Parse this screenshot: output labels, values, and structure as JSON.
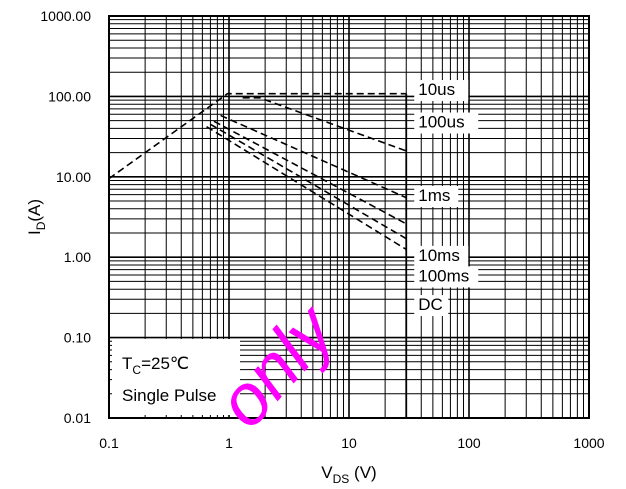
{
  "chart_data": {
    "type": "line",
    "title": "",
    "xlabel": {
      "main": "V",
      "sub": "DS",
      "unit": " (V)"
    },
    "ylabel": {
      "main": "I",
      "sub": "D",
      "unit": "(A)"
    },
    "x_scale": "log",
    "y_scale": "log",
    "xlim": [
      0.1,
      1000
    ],
    "ylim": [
      0.01,
      1000
    ],
    "grid": true,
    "x_ticks": [
      {
        "value": 0.1,
        "label": "0.1"
      },
      {
        "value": 1,
        "label": "1"
      },
      {
        "value": 10,
        "label": "10"
      },
      {
        "value": 100,
        "label": "100"
      },
      {
        "value": 1000,
        "label": "1000"
      }
    ],
    "y_ticks": [
      {
        "value": 0.01,
        "label": "0.01"
      },
      {
        "value": 0.1,
        "label": "0.10"
      },
      {
        "value": 1,
        "label": "1.00"
      },
      {
        "value": 10,
        "label": "10.00"
      },
      {
        "value": 100,
        "label": "100.00"
      },
      {
        "value": 1000,
        "label": "1000.00"
      }
    ],
    "series": [
      {
        "name": "10us",
        "style": "dashed",
        "points": [
          [
            0.1,
            9.5
          ],
          [
            0.97,
            108
          ],
          [
            6.3,
            108
          ],
          [
            30,
            108
          ]
        ],
        "label_at": [
          3.0,
          104
        ]
      },
      {
        "name": "100us",
        "style": "dashed",
        "points": [
          [
            1.3,
            96
          ],
          [
            1.8,
            96
          ],
          [
            30,
            21
          ]
        ],
        "label_at": [
          1.6,
          41
        ]
      },
      {
        "name": "1ms",
        "style": "dashed",
        "points": [
          [
            0.85,
            58
          ],
          [
            30,
            5.5
          ]
        ],
        "label_at": [
          1.4,
          5.0
        ]
      },
      {
        "name": "10ms",
        "style": "dashed",
        "points": [
          [
            0.75,
            49
          ],
          [
            30,
            2.6
          ]
        ],
        "label_at": [
          1.2,
          0.9
        ]
      },
      {
        "name": "100ms",
        "style": "dashed",
        "points": [
          [
            0.7,
            45
          ],
          [
            30,
            1.7
          ]
        ],
        "label_at": [
          1.15,
          0.5
        ]
      },
      {
        "name": "DC",
        "style": "dashed",
        "points": [
          [
            0.65,
            42
          ],
          [
            30,
            1.25
          ]
        ],
        "label_at": [
          0.9,
          0.22
        ]
      }
    ],
    "vertical_limit": {
      "x": 30,
      "from": 0.01,
      "to": 108
    },
    "annotations": {
      "tc": {
        "main": "T",
        "sub": "C",
        "rest": "=25℃"
      },
      "pulse": "Single Pulse"
    },
    "watermark": {
      "text": "only",
      "color": "#ff00ff"
    }
  }
}
